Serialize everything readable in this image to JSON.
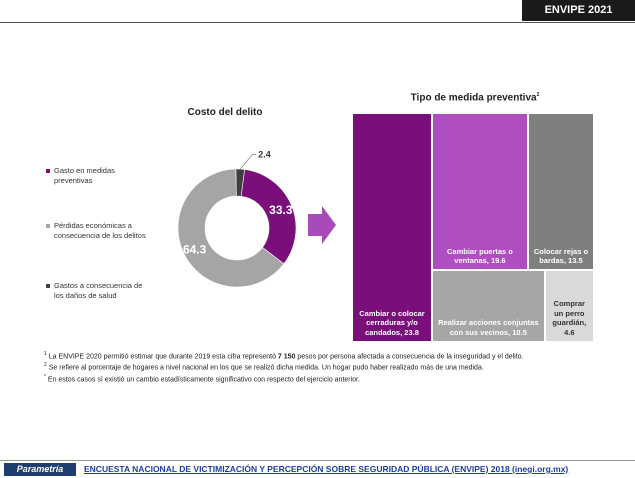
{
  "header": {
    "badge": "ENVIPE 2021"
  },
  "chart_data": [
    {
      "type": "donut",
      "title": "Costo del delito",
      "categories": [
        "Gasto en medidas preventivas",
        "Pérdidas económicas a consecuencia de los delitos",
        "Gastos a consecuencia de los daños de salud"
      ],
      "values": [
        33.3,
        64.3,
        2.4
      ],
      "colors": [
        "#7a0f7c",
        "#a5a5a5",
        "#3f3f3f"
      ]
    },
    {
      "type": "treemap",
      "title": "Tipo de medida preventiva",
      "title_note": "2",
      "categories": [
        "Cambiar o colocar cerraduras y/o candados,",
        "Cambiar puertas o ventanas,",
        "Colocar rejas o bardas,",
        "Realizar acciones conjuntas con sus vecinos,",
        "Comprar un perro guardián,"
      ],
      "values": [
        23.8,
        19.6,
        13.5,
        10.5,
        4.6
      ],
      "colors": [
        "#7a0f7c",
        "#b04dc0",
        "#7f7f7f",
        "#a6a6a6",
        "#d9d9d9"
      ]
    }
  ],
  "notes": [
    {
      "mark": "1",
      "before": "La ENVIPE 2020 permitió estimar que durante 2019 esta cifra representó ",
      "bold": "7 150",
      "after": " pesos por persona afectada a consecuencia de la inseguridad y el delito."
    },
    {
      "mark": "2",
      "text": "Se refiere al porcentaje de hogares a nivel nacional en los que se realizó dicha medida. Un hogar pudo haber realizado más de una medida."
    },
    {
      "mark": "*",
      "text": "En estos casos sí existió un cambio estadísticamente significativo con respecto del ejercicio anterior."
    }
  ],
  "footer": {
    "logo": "Parametría",
    "link": "ENCUESTA NACIONAL DE VICTIMIZACIÓN Y PERCEPCIÓN SOBRE SEGURIDAD PÚBLICA (ENVIPE) 2018 (inegi.org.mx)"
  }
}
